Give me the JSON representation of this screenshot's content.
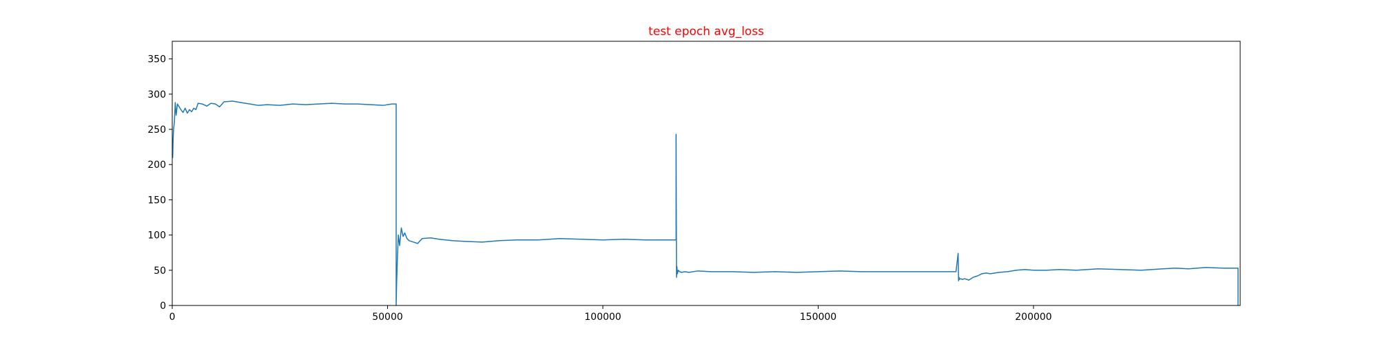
{
  "chart_data": {
    "type": "line",
    "title": "test epoch avg_loss",
    "title_color": "#ff0000",
    "xlabel": "",
    "ylabel": "",
    "xlim": [
      0,
      248000
    ],
    "ylim": [
      0,
      375
    ],
    "grid": false,
    "x_ticks": [
      0,
      50000,
      100000,
      150000,
      200000
    ],
    "x_tick_labels": [
      "0",
      "50000",
      "100000",
      "150000",
      "200000"
    ],
    "y_ticks": [
      0,
      50,
      100,
      150,
      200,
      250,
      300,
      350
    ],
    "y_tick_labels": [
      "0",
      "50",
      "100",
      "150",
      "200",
      "250",
      "300",
      "350"
    ],
    "series": [
      {
        "color": "#1f77b4",
        "x": [
          0,
          100,
          200,
          300,
          500,
          700,
          900,
          1200,
          1500,
          2000,
          2500,
          3000,
          3500,
          4000,
          4500,
          5000,
          5500,
          6000,
          7000,
          8000,
          9000,
          10000,
          11000,
          12000,
          14000,
          16000,
          18000,
          20000,
          22000,
          25000,
          28000,
          31000,
          34000,
          37000,
          40000,
          43000,
          46000,
          49000,
          51000,
          52000,
          52000,
          52100,
          52300,
          52500,
          52800,
          53200,
          53600,
          54000,
          54500,
          55000,
          56000,
          57000,
          58000,
          60000,
          62000,
          65000,
          68000,
          72000,
          76000,
          80000,
          85000,
          90000,
          95000,
          100000,
          105000,
          110000,
          115000,
          117000,
          117000,
          117100,
          117200,
          117300,
          117500,
          117800,
          118300,
          119000,
          120000,
          122000,
          125000,
          130000,
          135000,
          140000,
          145000,
          150000,
          155000,
          160000,
          165000,
          170000,
          175000,
          180000,
          182000,
          182500,
          182600,
          182700,
          182800,
          183000,
          183500,
          184000,
          185000,
          186000,
          187000,
          188000,
          189000,
          190000,
          192000,
          194000,
          196000,
          198000,
          200000,
          203000,
          206000,
          210000,
          215000,
          220000,
          225000,
          230000,
          233000,
          236000,
          240000,
          244000,
          247500,
          247500
        ],
        "values": [
          215,
          210,
          235,
          250,
          260,
          288,
          270,
          286,
          283,
          278,
          274,
          280,
          273,
          278,
          275,
          280,
          278,
          287,
          286,
          283,
          287,
          286,
          282,
          289,
          290,
          288,
          286,
          284,
          285,
          284,
          286,
          285,
          286,
          287,
          286,
          286,
          285,
          284,
          286,
          286,
          0,
          30,
          70,
          100,
          85,
          110,
          98,
          103,
          95,
          92,
          90,
          88,
          95,
          96,
          94,
          92,
          91,
          90,
          92,
          93,
          93,
          95,
          94,
          93,
          94,
          93,
          93,
          93,
          243,
          40,
          55,
          45,
          50,
          48,
          47,
          48,
          47,
          49,
          48,
          48,
          47,
          48,
          47,
          48,
          49,
          48,
          48,
          48,
          48,
          48,
          48,
          74,
          35,
          40,
          37,
          38,
          37,
          38,
          36,
          40,
          42,
          45,
          46,
          45,
          47,
          48,
          50,
          51,
          50,
          50,
          51,
          50,
          52,
          51,
          50,
          52,
          53,
          52,
          54,
          53,
          53,
          0
        ]
      }
    ]
  }
}
